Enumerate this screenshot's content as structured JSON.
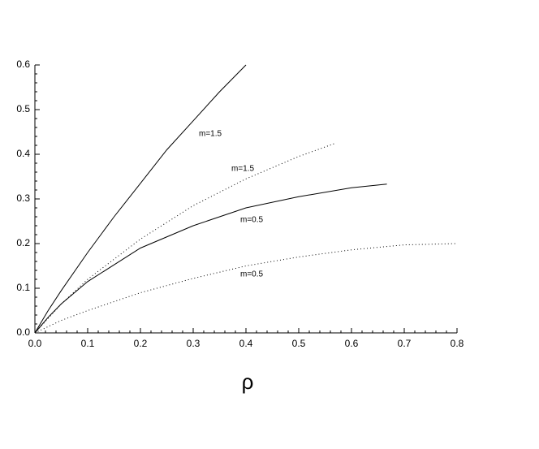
{
  "chart_data": {
    "type": "line",
    "xlabel": "ρ",
    "xlim": [
      0,
      0.8
    ],
    "ylim": [
      0,
      0.6
    ],
    "xticks": [
      {
        "value": 0,
        "label": "0.0"
      },
      0.1,
      0.2,
      0.3,
      0.4,
      0.5,
      0.6,
      0.7,
      0.8
    ],
    "yticks": [
      {
        "value": 0,
        "label": "0.0"
      },
      0.1,
      0.2,
      0.3,
      0.4,
      0.5,
      0.6
    ],
    "series": [
      {
        "name": "m=1.5",
        "color": "#000000",
        "dash": "solid",
        "x": [
          0,
          0.025,
          0.05,
          0.1,
          0.15,
          0.2,
          0.25,
          0.3,
          0.35,
          0.4
        ],
        "values": [
          0,
          0.05,
          0.095,
          0.18,
          0.26,
          0.335,
          0.41,
          0.475,
          0.54,
          0.6
        ]
      },
      {
        "name": "m=1.5",
        "color": "#000000",
        "dash": "dotted",
        "x": [
          0,
          0.05,
          0.1,
          0.2,
          0.3,
          0.4,
          0.5,
          0.57
        ],
        "values": [
          0,
          0.065,
          0.12,
          0.21,
          0.285,
          0.345,
          0.395,
          0.425
        ]
      },
      {
        "name": "m=0.5",
        "color": "#000000",
        "dash": "solid",
        "x": [
          0,
          0.025,
          0.05,
          0.1,
          0.2,
          0.3,
          0.4,
          0.5,
          0.6,
          0.667
        ],
        "values": [
          0,
          0.035,
          0.065,
          0.115,
          0.19,
          0.24,
          0.28,
          0.305,
          0.325,
          0.333
        ]
      },
      {
        "name": "m=0.5",
        "color": "#000000",
        "dash": "dotted",
        "x": [
          0,
          0.05,
          0.1,
          0.2,
          0.3,
          0.4,
          0.5,
          0.6,
          0.7,
          0.8
        ],
        "values": [
          0,
          0.028,
          0.05,
          0.09,
          0.122,
          0.15,
          0.17,
          0.186,
          0.197,
          0.2
        ]
      }
    ]
  }
}
